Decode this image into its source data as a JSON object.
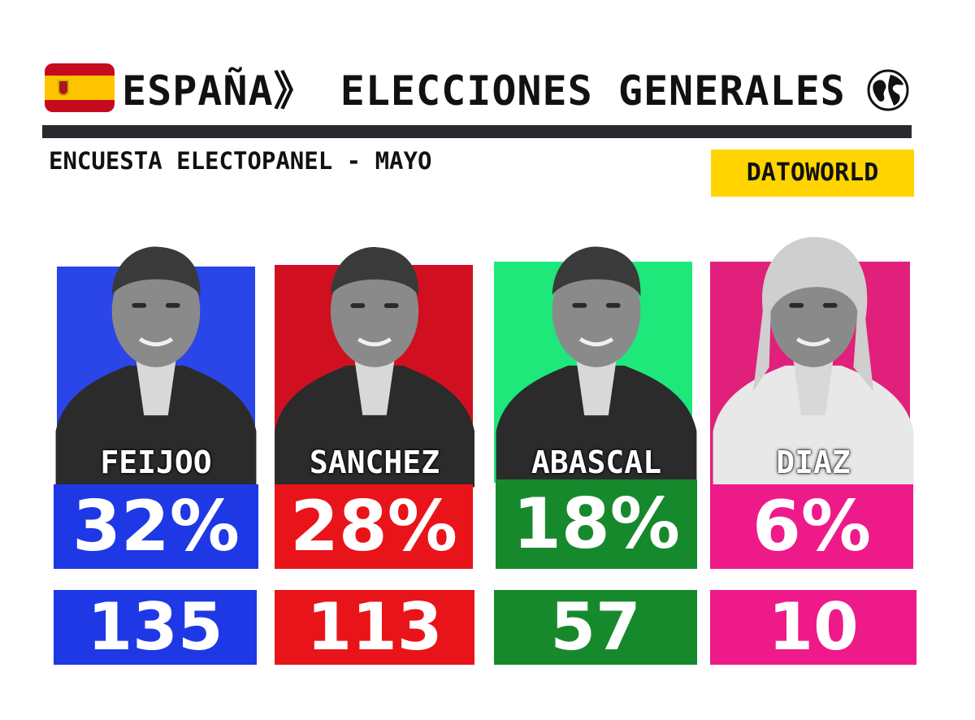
{
  "title": "ESPAÑA》 ELECCIONES GENERALES",
  "subtitle": "ENCUESTA ELECTOPANEL - MAYO",
  "badge": "DATOWORLD",
  "icons": {
    "flag": "spain-flag-icon",
    "globe": "globe-icon"
  },
  "chart_data": {
    "type": "table",
    "title": "ESPAÑA》 ELECCIONES GENERALES",
    "subtitle": "ENCUESTA ELECTOPANEL - MAYO",
    "categories": [
      "FEIJOO",
      "SANCHEZ",
      "ABASCAL",
      "DIAZ"
    ],
    "series": [
      {
        "values": [
          32,
          28,
          18,
          6
        ],
        "labels": [
          "32%",
          "28%",
          "18%",
          "6%"
        ]
      },
      {
        "values": [
          135,
          113,
          57,
          10
        ],
        "labels": [
          "135",
          "113",
          "57",
          "10"
        ]
      }
    ],
    "colors": {
      "photo_bg": [
        "#2a45e8",
        "#d01020",
        "#1ee87a",
        "#e0207a"
      ],
      "values": [
        "#1f38e6",
        "#e9141a",
        "#17892d",
        "#ee1a8a"
      ]
    }
  }
}
